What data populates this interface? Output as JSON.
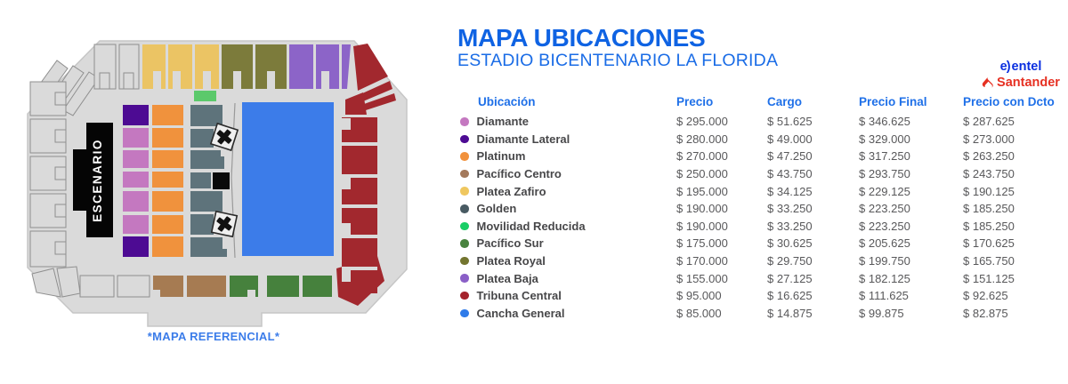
{
  "header": {
    "title": "MAPA UBICACIONES",
    "subtitle": "ESTADIO BICENTENARIO LA FLORIDA"
  },
  "map": {
    "caption": "*MAPA REFERENCIAL*",
    "stage_label": "ESCENARIO"
  },
  "sponsors": {
    "entel_label": "entel",
    "entel_mark": "e)",
    "santander_label": "Santander"
  },
  "table": {
    "columns": [
      "Ubicación",
      "Precio",
      "Cargo",
      "Precio Final",
      "Precio con Dcto"
    ],
    "rows": [
      {
        "name": "Diamante",
        "color": "#C478C0",
        "precio": "$ 295.000",
        "cargo": "$ 51.625",
        "final": "$ 346.625",
        "dcto": "$ 287.625"
      },
      {
        "name": "Diamante Lateral",
        "color": "#4D0B93",
        "precio": "$ 280.000",
        "cargo": "$ 49.000",
        "final": "$ 329.000",
        "dcto": "$ 273.000"
      },
      {
        "name": "Platinum",
        "color": "#F1913C",
        "precio": "$ 270.000",
        "cargo": "$ 47.250",
        "final": "$ 317.250",
        "dcto": "$ 263.250"
      },
      {
        "name": "Pacífico Centro",
        "color": "#A3795B",
        "precio": "$ 250.000",
        "cargo": "$ 43.750",
        "final": "$ 293.750",
        "dcto": "$ 243.750"
      },
      {
        "name": "Platea Zafiro",
        "color": "#EFC75F",
        "precio": "$ 195.000",
        "cargo": "$ 34.125",
        "final": "$ 229.125",
        "dcto": "$ 190.125"
      },
      {
        "name": "Golden",
        "color": "#485A62",
        "precio": "$ 190.000",
        "cargo": "$ 33.250",
        "final": "$ 223.250",
        "dcto": "$ 185.250"
      },
      {
        "name": "Movilidad Reducida",
        "color": "#19CE66",
        "precio": "$ 190.000",
        "cargo": "$ 33.250",
        "final": "$ 223.250",
        "dcto": "$ 185.250"
      },
      {
        "name": "Pacífico Sur",
        "color": "#48833E",
        "precio": "$ 175.000",
        "cargo": "$ 30.625",
        "final": "$ 205.625",
        "dcto": "$ 170.625"
      },
      {
        "name": "Platea Royal",
        "color": "#73752F",
        "precio": "$ 170.000",
        "cargo": "$ 29.750",
        "final": "$ 199.750",
        "dcto": "$ 165.750"
      },
      {
        "name": "Platea Baja",
        "color": "#8A5FC7",
        "precio": "$ 155.000",
        "cargo": "$ 27.125",
        "final": "$ 182.125",
        "dcto": "$ 151.125"
      },
      {
        "name": "Tribuna Central",
        "color": "#A4232C",
        "precio": "$ 95.000",
        "cargo": "$ 16.625",
        "final": "$ 111.625",
        "dcto": "$ 92.625"
      },
      {
        "name": "Cancha General",
        "color": "#2F7BE9",
        "precio": "$ 85.000",
        "cargo": "$ 14.875",
        "final": "$ 99.875",
        "dcto": "$ 82.875"
      }
    ]
  },
  "colors": {
    "accent": "#1a6ce6",
    "map_bg": "#dadada",
    "map_edge": "#c6c6c6",
    "outline": "#8f8f8f",
    "diamante": "#C478C0",
    "lateral": "#4D0B93",
    "platinum": "#F0923D",
    "centro": "#A67B52",
    "zafiro": "#EBC464",
    "golden": "#5E737B",
    "movilidad": "#5BC96B",
    "sur": "#46813D",
    "royal": "#7C7B3B",
    "baja": "#8C64C8",
    "tribuna": "#A2282E",
    "cancha": "#3C7CE9",
    "stage": "#050505",
    "entel_blue": "#0A2FE0",
    "santander_red": "#E63022"
  }
}
